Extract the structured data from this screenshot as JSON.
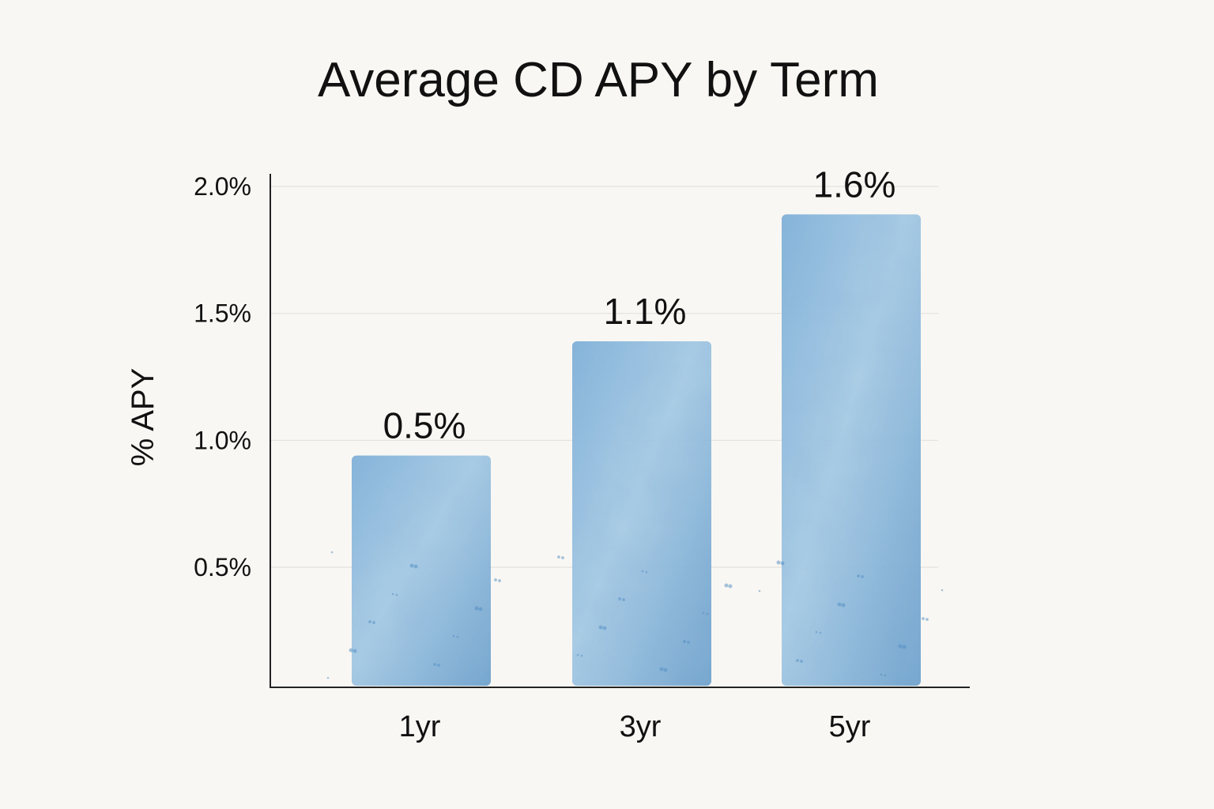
{
  "chart_data": {
    "type": "bar",
    "title": "Average CD APY by Term",
    "xlabel": "",
    "ylabel": "% APY",
    "categories": [
      "1yr",
      "3yr",
      "5yr"
    ],
    "values": [
      0.5,
      1.1,
      1.6
    ],
    "value_labels": [
      "0.5%",
      "1.1%",
      "1.6%"
    ],
    "y_ticks": [
      {
        "value": 0.5,
        "label": "0.5%"
      },
      {
        "value": 1.0,
        "label": "1.0%"
      },
      {
        "value": 1.5,
        "label": "1.5%"
      },
      {
        "value": 2.0,
        "label": "2.0%"
      }
    ],
    "ylim": [
      0,
      2.0
    ],
    "grid": true,
    "legend": "none",
    "colors": {
      "bar": "#8fbbdc",
      "bar_dark": "#5f97c6",
      "axis": "#222222",
      "grid": "#e4e1dc"
    }
  }
}
